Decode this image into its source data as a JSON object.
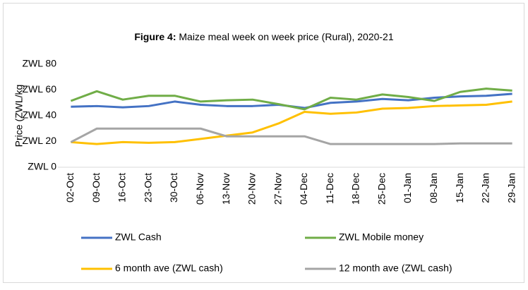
{
  "chart_data": {
    "type": "line",
    "title_prefix": "Figure 4:",
    "title": "Maize meal week on week price (Rural), 2020-21",
    "y_label": "Price (ZWL/kg",
    "categories": [
      "02-Oct",
      "09-Oct",
      "16-Oct",
      "23-Oct",
      "30-Oct",
      "06-Nov",
      "13-Nov",
      "20-Nov",
      "27-Nov",
      "04-Dec",
      "11-Dec",
      "18-Dec",
      "25-Dec",
      "01-Jan",
      "08-Jan",
      "15-Jan",
      "22-Jan",
      "29-Jan"
    ],
    "series": [
      {
        "name": "ZWL Cash",
        "color": "#4472c4",
        "values": [
          47,
          47.5,
          46.5,
          47.5,
          51,
          48.5,
          47.5,
          47.5,
          48.5,
          46,
          50,
          51,
          53,
          52,
          54,
          55,
          55.5,
          57
        ]
      },
      {
        "name": "ZWL Mobile money",
        "color": "#70ad47",
        "values": [
          51.5,
          59,
          52.5,
          55.5,
          55.5,
          51,
          52,
          52.5,
          49,
          45,
          54,
          52.5,
          56.5,
          54.5,
          51.5,
          58.5,
          61,
          59.5
        ]
      },
      {
        "name": "6 month ave (ZWL cash)",
        "color": "#ffc000",
        "values": [
          19.5,
          18,
          19.5,
          19,
          19.5,
          22,
          24.5,
          27,
          34,
          43,
          41.5,
          42.5,
          45.5,
          46,
          47.5,
          48,
          48.5,
          51
        ]
      },
      {
        "name": "12 month ave (ZWL cash)",
        "color": "#a5a5a5",
        "values": [
          19.5,
          30,
          30,
          30,
          30,
          30,
          24,
          24,
          24,
          24,
          18,
          18,
          18,
          18,
          18,
          18.5,
          18.5,
          18.5
        ]
      }
    ],
    "ylim": [
      0,
      80
    ],
    "yticks": [
      {
        "value": 0,
        "label": "ZWL 0"
      },
      {
        "value": 20,
        "label": "ZWL 20"
      },
      {
        "value": 40,
        "label": "ZWL 40"
      },
      {
        "value": 60,
        "label": "ZWL 60"
      },
      {
        "value": 80,
        "label": "ZWL 80"
      }
    ],
    "grid": false,
    "legend": "bottom"
  }
}
